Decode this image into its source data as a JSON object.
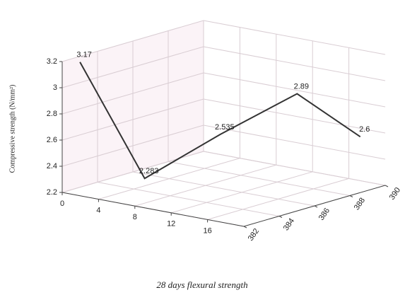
{
  "chart_data": {
    "type": "line3d",
    "caption": "28 days flexural strength",
    "y_label": "Compressive strength (N/mm²)",
    "x": [
      0.4,
      4.8,
      7.3,
      13.8,
      19.2
    ],
    "z": [
      382.8,
      384.2,
      387.2,
      388.2,
      389
    ],
    "values": [
      3.17,
      2.283,
      2.535,
      2.89,
      2.6
    ],
    "color": "#333333",
    "xlim": [
      0,
      20
    ],
    "xticks": [
      0,
      4,
      8,
      12,
      16
    ],
    "zlim": [
      382,
      390
    ],
    "zticks": [
      382,
      384,
      386,
      388,
      390
    ],
    "ylim": [
      2.2,
      3.2
    ],
    "yticks": [
      2.2,
      2.4,
      2.6,
      2.8,
      3,
      3.2
    ],
    "grid": true
  }
}
